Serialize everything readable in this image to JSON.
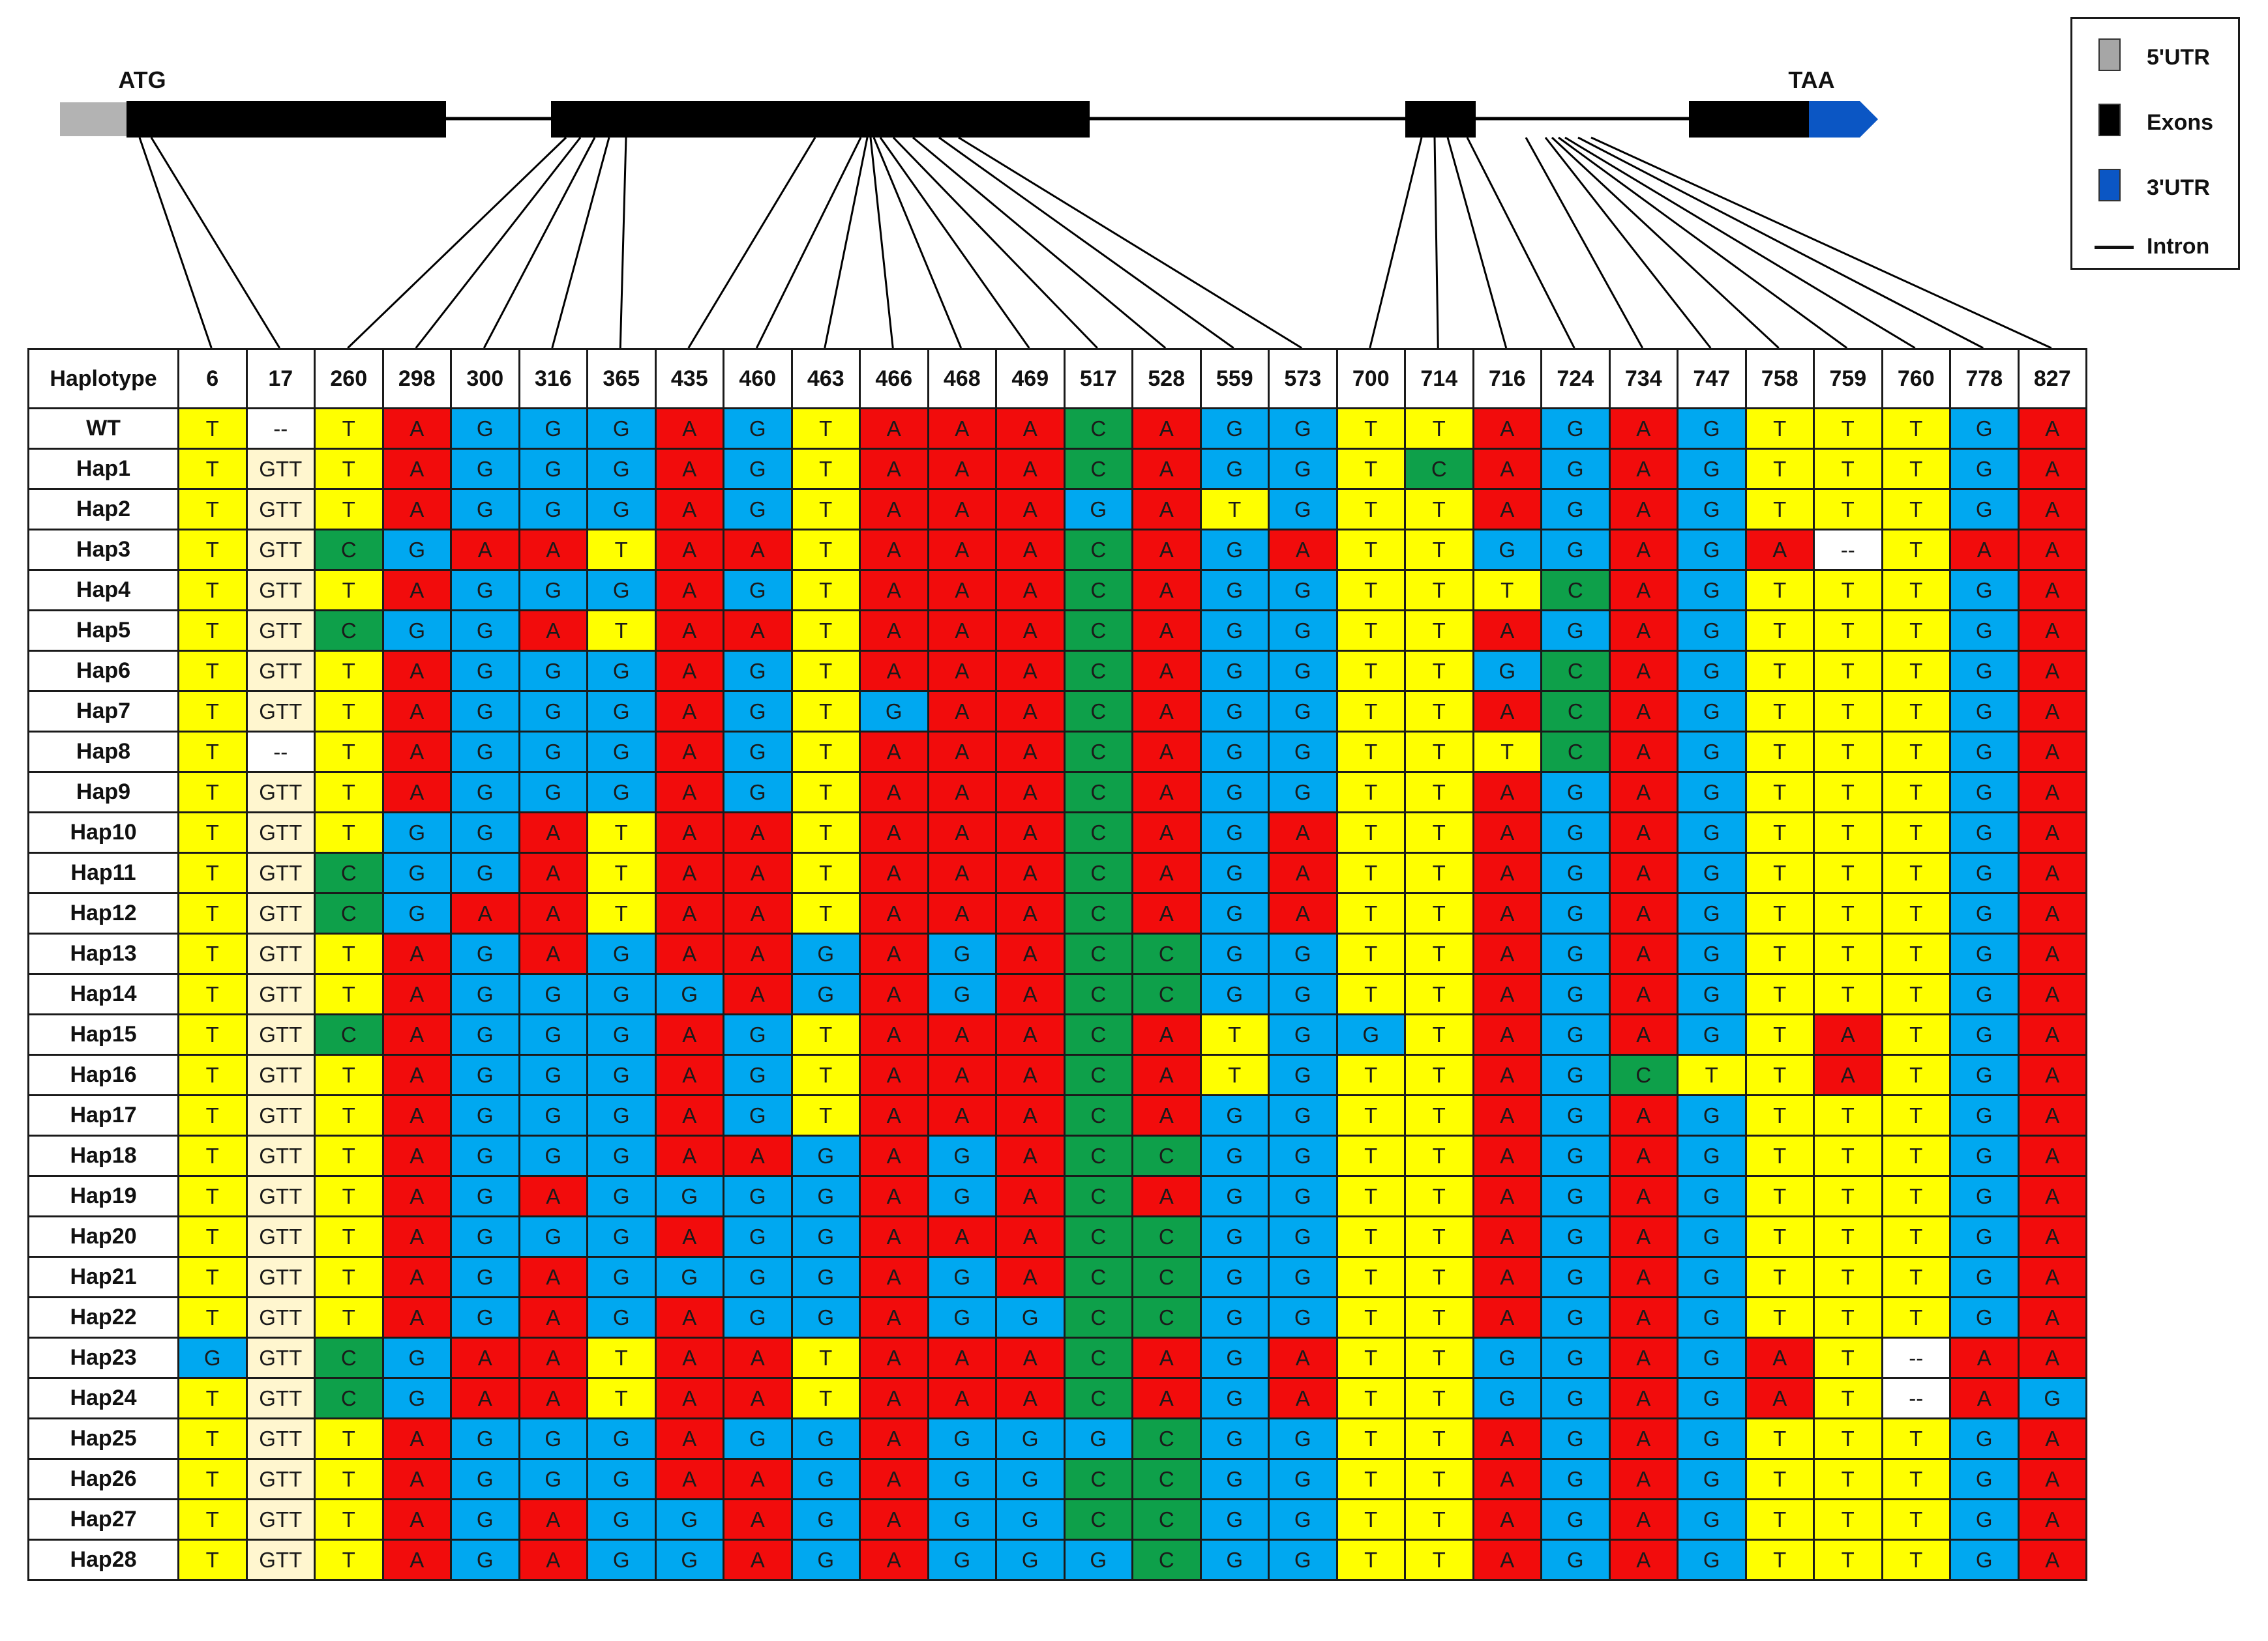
{
  "gene": {
    "start_codon": "ATG",
    "stop_codon": "TAA"
  },
  "legend": {
    "items": [
      {
        "label": "5'UTR",
        "color": "#a6a6a6",
        "kind": "box"
      },
      {
        "label": "Exons",
        "color": "#000000",
        "kind": "box"
      },
      {
        "label": "3'UTR",
        "color": "#0b56c4",
        "kind": "box"
      },
      {
        "label": "Intron",
        "color": "#000000",
        "kind": "line"
      }
    ]
  },
  "colors": {
    "A": "#f20c0c",
    "G": "#00a8f0",
    "T": "#ffff00",
    "C": "#0ea04a",
    "GTT": "#fff6cf",
    "--": "#ffffff"
  },
  "table": {
    "header_label": "Haplotype",
    "positions": [
      "6",
      "17",
      "260",
      "298",
      "300",
      "316",
      "365",
      "435",
      "460",
      "463",
      "466",
      "468",
      "469",
      "517",
      "528",
      "559",
      "573",
      "700",
      "714",
      "716",
      "724",
      "734",
      "747",
      "758",
      "759",
      "760",
      "778",
      "827"
    ],
    "rows": [
      {
        "name": "WT",
        "cells": [
          "T",
          "--",
          "T",
          "A",
          "G",
          "G",
          "G",
          "A",
          "G",
          "T",
          "A",
          "A",
          "A",
          "C",
          "A",
          "G",
          "G",
          "T",
          "T",
          "A",
          "G",
          "A",
          "G",
          "T",
          "T",
          "T",
          "G",
          "A"
        ]
      },
      {
        "name": "Hap1",
        "cells": [
          "T",
          "GTT",
          "T",
          "A",
          "G",
          "G",
          "G",
          "A",
          "G",
          "T",
          "A",
          "A",
          "A",
          "C",
          "A",
          "G",
          "G",
          "T",
          "C",
          "A",
          "G",
          "A",
          "G",
          "T",
          "T",
          "T",
          "G",
          "A"
        ]
      },
      {
        "name": "Hap2",
        "cells": [
          "T",
          "GTT",
          "T",
          "A",
          "G",
          "G",
          "G",
          "A",
          "G",
          "T",
          "A",
          "A",
          "A",
          "G",
          "A",
          "T",
          "G",
          "T",
          "T",
          "A",
          "G",
          "A",
          "G",
          "T",
          "T",
          "T",
          "G",
          "A"
        ]
      },
      {
        "name": "Hap3",
        "cells": [
          "T",
          "GTT",
          "C",
          "G",
          "A",
          "A",
          "T",
          "A",
          "A",
          "T",
          "A",
          "A",
          "A",
          "C",
          "A",
          "G",
          "A",
          "T",
          "T",
          "G",
          "G",
          "A",
          "G",
          "A",
          "--",
          "T",
          "A",
          "A"
        ]
      },
      {
        "name": "Hap4",
        "cells": [
          "T",
          "GTT",
          "T",
          "A",
          "G",
          "G",
          "G",
          "A",
          "G",
          "T",
          "A",
          "A",
          "A",
          "C",
          "A",
          "G",
          "G",
          "T",
          "T",
          "T",
          "C",
          "A",
          "G",
          "T",
          "T",
          "T",
          "G",
          "A"
        ]
      },
      {
        "name": "Hap5",
        "cells": [
          "T",
          "GTT",
          "C",
          "G",
          "G",
          "A",
          "T",
          "A",
          "A",
          "T",
          "A",
          "A",
          "A",
          "C",
          "A",
          "G",
          "G",
          "T",
          "T",
          "A",
          "G",
          "A",
          "G",
          "T",
          "T",
          "T",
          "G",
          "A"
        ]
      },
      {
        "name": "Hap6",
        "cells": [
          "T",
          "GTT",
          "T",
          "A",
          "G",
          "G",
          "G",
          "A",
          "G",
          "T",
          "A",
          "A",
          "A",
          "C",
          "A",
          "G",
          "G",
          "T",
          "T",
          "G",
          "C",
          "A",
          "G",
          "T",
          "T",
          "T",
          "G",
          "A"
        ]
      },
      {
        "name": "Hap7",
        "cells": [
          "T",
          "GTT",
          "T",
          "A",
          "G",
          "G",
          "G",
          "A",
          "G",
          "T",
          "G",
          "A",
          "A",
          "C",
          "A",
          "G",
          "G",
          "T",
          "T",
          "A",
          "C",
          "A",
          "G",
          "T",
          "T",
          "T",
          "G",
          "A"
        ]
      },
      {
        "name": "Hap8",
        "cells": [
          "T",
          "--",
          "T",
          "A",
          "G",
          "G",
          "G",
          "A",
          "G",
          "T",
          "A",
          "A",
          "A",
          "C",
          "A",
          "G",
          "G",
          "T",
          "T",
          "T",
          "C",
          "A",
          "G",
          "T",
          "T",
          "T",
          "G",
          "A"
        ]
      },
      {
        "name": "Hap9",
        "cells": [
          "T",
          "GTT",
          "T",
          "A",
          "G",
          "G",
          "G",
          "A",
          "G",
          "T",
          "A",
          "A",
          "A",
          "C",
          "A",
          "G",
          "G",
          "T",
          "T",
          "A",
          "G",
          "A",
          "G",
          "T",
          "T",
          "T",
          "G",
          "A"
        ]
      },
      {
        "name": "Hap10",
        "cells": [
          "T",
          "GTT",
          "T",
          "G",
          "G",
          "A",
          "T",
          "A",
          "A",
          "T",
          "A",
          "A",
          "A",
          "C",
          "A",
          "G",
          "A",
          "T",
          "T",
          "A",
          "G",
          "A",
          "G",
          "T",
          "T",
          "T",
          "G",
          "A"
        ]
      },
      {
        "name": "Hap11",
        "cells": [
          "T",
          "GTT",
          "C",
          "G",
          "G",
          "A",
          "T",
          "A",
          "A",
          "T",
          "A",
          "A",
          "A",
          "C",
          "A",
          "G",
          "A",
          "T",
          "T",
          "A",
          "G",
          "A",
          "G",
          "T",
          "T",
          "T",
          "G",
          "A"
        ]
      },
      {
        "name": "Hap12",
        "cells": [
          "T",
          "GTT",
          "C",
          "G",
          "A",
          "A",
          "T",
          "A",
          "A",
          "T",
          "A",
          "A",
          "A",
          "C",
          "A",
          "G",
          "A",
          "T",
          "T",
          "A",
          "G",
          "A",
          "G",
          "T",
          "T",
          "T",
          "G",
          "A"
        ]
      },
      {
        "name": "Hap13",
        "cells": [
          "T",
          "GTT",
          "T",
          "A",
          "G",
          "A",
          "G",
          "A",
          "A",
          "G",
          "A",
          "G",
          "A",
          "C",
          "C",
          "G",
          "G",
          "T",
          "T",
          "A",
          "G",
          "A",
          "G",
          "T",
          "T",
          "T",
          "G",
          "A"
        ]
      },
      {
        "name": "Hap14",
        "cells": [
          "T",
          "GTT",
          "T",
          "A",
          "G",
          "G",
          "G",
          "G",
          "A",
          "G",
          "A",
          "G",
          "A",
          "C",
          "C",
          "G",
          "G",
          "T",
          "T",
          "A",
          "G",
          "A",
          "G",
          "T",
          "T",
          "T",
          "G",
          "A"
        ]
      },
      {
        "name": "Hap15",
        "cells": [
          "T",
          "GTT",
          "C",
          "A",
          "G",
          "G",
          "G",
          "A",
          "G",
          "T",
          "A",
          "A",
          "A",
          "C",
          "A",
          "T",
          "G",
          "G",
          "T",
          "A",
          "G",
          "A",
          "G",
          "T",
          "A",
          "T",
          "G",
          "A"
        ]
      },
      {
        "name": "Hap16",
        "cells": [
          "T",
          "GTT",
          "T",
          "A",
          "G",
          "G",
          "G",
          "A",
          "G",
          "T",
          "A",
          "A",
          "A",
          "C",
          "A",
          "T",
          "G",
          "T",
          "T",
          "A",
          "G",
          "C",
          "T",
          "T",
          "A",
          "T",
          "G",
          "A"
        ]
      },
      {
        "name": "Hap17",
        "cells": [
          "T",
          "GTT",
          "T",
          "A",
          "G",
          "G",
          "G",
          "A",
          "G",
          "T",
          "A",
          "A",
          "A",
          "C",
          "A",
          "G",
          "G",
          "T",
          "T",
          "A",
          "G",
          "A",
          "G",
          "T",
          "T",
          "T",
          "G",
          "A"
        ]
      },
      {
        "name": "Hap18",
        "cells": [
          "T",
          "GTT",
          "T",
          "A",
          "G",
          "G",
          "G",
          "A",
          "A",
          "G",
          "A",
          "G",
          "A",
          "C",
          "C",
          "G",
          "G",
          "T",
          "T",
          "A",
          "G",
          "A",
          "G",
          "T",
          "T",
          "T",
          "G",
          "A"
        ]
      },
      {
        "name": "Hap19",
        "cells": [
          "T",
          "GTT",
          "T",
          "A",
          "G",
          "A",
          "G",
          "G",
          "G",
          "G",
          "A",
          "G",
          "A",
          "C",
          "A",
          "G",
          "G",
          "T",
          "T",
          "A",
          "G",
          "A",
          "G",
          "T",
          "T",
          "T",
          "G",
          "A"
        ]
      },
      {
        "name": "Hap20",
        "cells": [
          "T",
          "GTT",
          "T",
          "A",
          "G",
          "G",
          "G",
          "A",
          "G",
          "G",
          "A",
          "A",
          "A",
          "C",
          "C",
          "G",
          "G",
          "T",
          "T",
          "A",
          "G",
          "A",
          "G",
          "T",
          "T",
          "T",
          "G",
          "A"
        ]
      },
      {
        "name": "Hap21",
        "cells": [
          "T",
          "GTT",
          "T",
          "A",
          "G",
          "A",
          "G",
          "G",
          "G",
          "G",
          "A",
          "G",
          "A",
          "C",
          "C",
          "G",
          "G",
          "T",
          "T",
          "A",
          "G",
          "A",
          "G",
          "T",
          "T",
          "T",
          "G",
          "A"
        ]
      },
      {
        "name": "Hap22",
        "cells": [
          "T",
          "GTT",
          "T",
          "A",
          "G",
          "A",
          "G",
          "A",
          "G",
          "G",
          "A",
          "G",
          "G",
          "C",
          "C",
          "G",
          "G",
          "T",
          "T",
          "A",
          "G",
          "A",
          "G",
          "T",
          "T",
          "T",
          "G",
          "A"
        ]
      },
      {
        "name": "Hap23",
        "cells": [
          "G",
          "GTT",
          "C",
          "G",
          "A",
          "A",
          "T",
          "A",
          "A",
          "T",
          "A",
          "A",
          "A",
          "C",
          "A",
          "G",
          "A",
          "T",
          "T",
          "G",
          "G",
          "A",
          "G",
          "A",
          "T",
          "--",
          "A",
          "A"
        ]
      },
      {
        "name": "Hap24",
        "cells": [
          "T",
          "GTT",
          "C",
          "G",
          "A",
          "A",
          "T",
          "A",
          "A",
          "T",
          "A",
          "A",
          "A",
          "C",
          "A",
          "G",
          "A",
          "T",
          "T",
          "G",
          "G",
          "A",
          "G",
          "A",
          "T",
          "--",
          "A",
          "G"
        ]
      },
      {
        "name": "Hap25",
        "cells": [
          "T",
          "GTT",
          "T",
          "A",
          "G",
          "G",
          "G",
          "A",
          "G",
          "G",
          "A",
          "G",
          "G",
          "G",
          "C",
          "G",
          "G",
          "T",
          "T",
          "A",
          "G",
          "A",
          "G",
          "T",
          "T",
          "T",
          "G",
          "A"
        ]
      },
      {
        "name": "Hap26",
        "cells": [
          "T",
          "GTT",
          "T",
          "A",
          "G",
          "G",
          "G",
          "A",
          "A",
          "G",
          "A",
          "G",
          "G",
          "C",
          "C",
          "G",
          "G",
          "T",
          "T",
          "A",
          "G",
          "A",
          "G",
          "T",
          "T",
          "T",
          "G",
          "A"
        ]
      },
      {
        "name": "Hap27",
        "cells": [
          "T",
          "GTT",
          "T",
          "A",
          "G",
          "A",
          "G",
          "G",
          "A",
          "G",
          "A",
          "G",
          "G",
          "C",
          "C",
          "G",
          "G",
          "T",
          "T",
          "A",
          "G",
          "A",
          "G",
          "T",
          "T",
          "T",
          "G",
          "A"
        ]
      },
      {
        "name": "Hap28",
        "cells": [
          "T",
          "GTT",
          "T",
          "A",
          "G",
          "A",
          "G",
          "G",
          "A",
          "G",
          "A",
          "G",
          "G",
          "G",
          "C",
          "G",
          "G",
          "T",
          "T",
          "A",
          "G",
          "A",
          "G",
          "T",
          "T",
          "T",
          "G",
          "A"
        ]
      }
    ]
  }
}
